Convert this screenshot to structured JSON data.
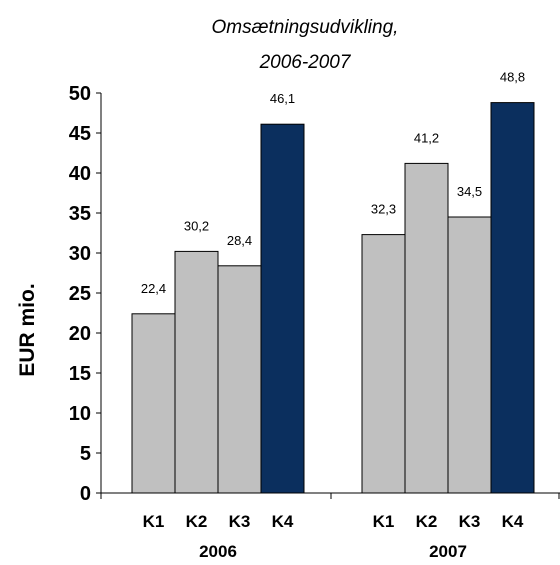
{
  "chart_data": {
    "type": "bar",
    "title": [
      "Omsætningsudvikling,",
      "2006-2007"
    ],
    "ylabel": "EUR mio.",
    "ylim": [
      0,
      50
    ],
    "yticks": [
      "0",
      "5",
      "10",
      "15",
      "20",
      "25",
      "30",
      "35",
      "40",
      "45",
      "50"
    ],
    "groups": [
      {
        "label": "2006",
        "categories": [
          "K1",
          "K2",
          "K3",
          "K4"
        ],
        "values": [
          22.4,
          30.2,
          28.4,
          46.1
        ],
        "data_labels": [
          "22,4",
          "30,2",
          "28,4",
          "46,1"
        ]
      },
      {
        "label": "2007",
        "categories": [
          "K1",
          "K2",
          "K3",
          "K4"
        ],
        "values": [
          32.3,
          41.2,
          34.5,
          48.8
        ],
        "data_labels": [
          "32,3",
          "41,2",
          "34,5",
          "48,8"
        ]
      }
    ],
    "colors": {
      "quarter": "#c0c0c0",
      "highlight": "#0b2f5e",
      "outline": "#000000"
    },
    "highlight_category": "K4"
  }
}
